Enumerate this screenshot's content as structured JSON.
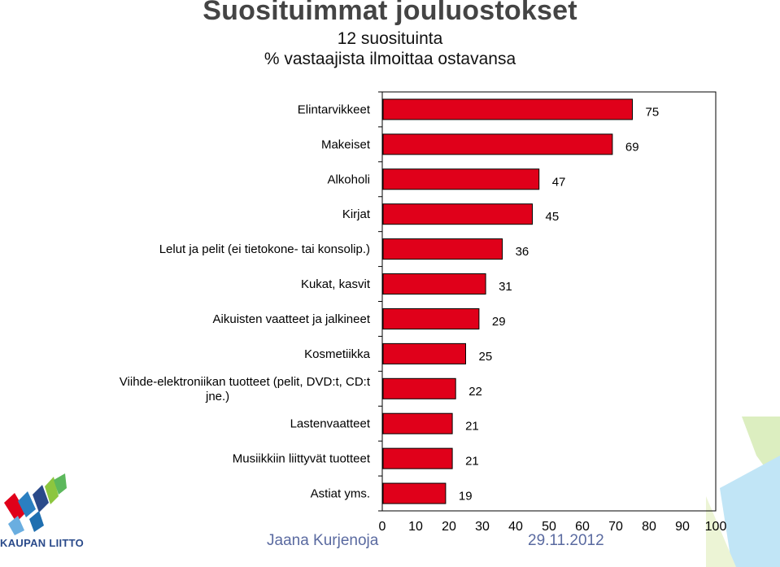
{
  "title": "Suosituimmat jouluostokset",
  "subtitle": "12 suosituinta",
  "subtitle2": "% vastaajista ilmoittaa ostavansa",
  "footer": {
    "author": "Jaana Kurjenoja",
    "date": "29.11.2012"
  },
  "logo": {
    "text": "KAUPAN LIITTO"
  },
  "colors": {
    "bar_fill": "#e0001a",
    "bar_outline": "#000000",
    "title": "#444444",
    "footer": "#5a6aa0"
  },
  "chart_data": {
    "type": "bar",
    "orientation": "horizontal",
    "categories": [
      "Elintarvikkeet",
      "Makeiset",
      "Alkoholi",
      "Kirjat",
      "Lelut ja pelit (ei tietokone- tai konsolip.)",
      "Kukat, kasvit",
      "Aikuisten vaatteet ja jalkineet",
      "Kosmetiikka",
      "Viihde-elektroniikan tuotteet (pelit, DVD:t, CD:t jne.)",
      "Lastenvaatteet",
      "Musiikkiin liittyvät tuotteet",
      "Astiat yms."
    ],
    "category_lines": [
      [
        "Elintarvikkeet"
      ],
      [
        "Makeiset"
      ],
      [
        "Alkoholi"
      ],
      [
        "Kirjat"
      ],
      [
        "Lelut ja pelit (ei tietokone- tai konsolip.)"
      ],
      [
        "Kukat, kasvit"
      ],
      [
        "Aikuisten vaatteet ja jalkineet"
      ],
      [
        "Kosmetiikka"
      ],
      [
        "Viihde-elektroniikan tuotteet (pelit, DVD:t, CD:t",
        "jne.)"
      ],
      [
        "Lastenvaatteet"
      ],
      [
        "Musiikkiin liittyvät tuotteet"
      ],
      [
        "Astiat yms."
      ]
    ],
    "values": [
      75,
      69,
      47,
      45,
      36,
      31,
      29,
      25,
      22,
      21,
      21,
      19
    ],
    "xlim": [
      0,
      100
    ],
    "xticks": [
      0,
      10,
      20,
      30,
      40,
      50,
      60,
      70,
      80,
      90,
      100
    ],
    "grid": false,
    "data_labels": true
  }
}
